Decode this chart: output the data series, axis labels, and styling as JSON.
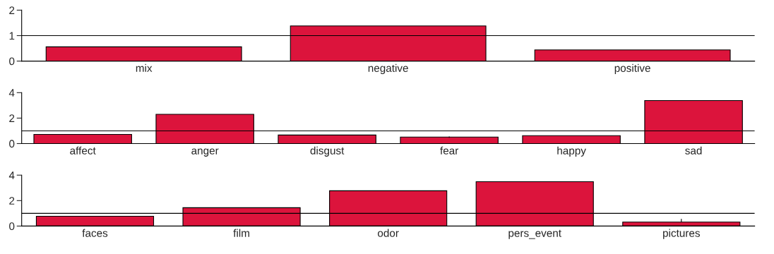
{
  "chart_data": [
    {
      "type": "bar",
      "categories": [
        "mix",
        "negative",
        "positive"
      ],
      "values": [
        0.56,
        1.38,
        0.44
      ],
      "color": "#dc143c",
      "ylim": [
        0,
        2
      ],
      "yticks": [
        0,
        1,
        2
      ],
      "ref_lines": [
        {
          "axis": "y",
          "value": 1,
          "color": "#000000"
        }
      ]
    },
    {
      "type": "bar",
      "categories": [
        "affect",
        "anger",
        "disgust",
        "fear",
        "happy",
        "sad"
      ],
      "values": [
        0.72,
        2.3,
        0.67,
        0.51,
        0.62,
        3.38
      ],
      "errors": [
        null,
        null,
        null,
        0.05,
        null,
        null
      ],
      "color": "#dc143c",
      "ylim": [
        0,
        4
      ],
      "yticks": [
        0,
        2,
        4
      ],
      "ref_lines": [
        {
          "axis": "y",
          "value": 1,
          "color": "#000000"
        }
      ]
    },
    {
      "type": "bar",
      "categories": [
        "faces",
        "film",
        "odor",
        "pers_event",
        "pictures"
      ],
      "values": [
        0.77,
        1.44,
        2.77,
        3.49,
        0.31
      ],
      "errors": [
        null,
        null,
        null,
        null,
        [
          0.31,
          0.56
        ]
      ],
      "color": "#dc143c",
      "ylim": [
        0,
        4
      ],
      "yticks": [
        0,
        2,
        4
      ],
      "ref_lines": [
        {
          "axis": "y",
          "value": 1,
          "color": "#000000"
        }
      ]
    }
  ]
}
